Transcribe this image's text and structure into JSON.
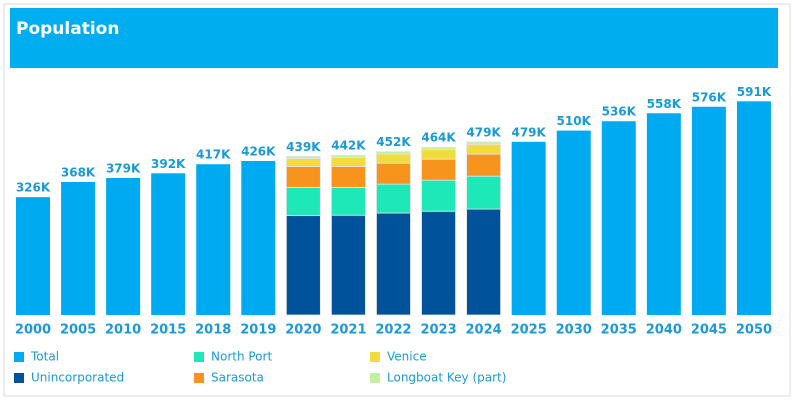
{
  "chart_data": {
    "type": "stacked_bar",
    "title": "Population",
    "categories": [
      "2000",
      "2005",
      "2010",
      "2015",
      "2018",
      "2019",
      "2020",
      "2021",
      "2022",
      "2023",
      "2024",
      "2025",
      "2030",
      "2035",
      "2040",
      "2045",
      "2050"
    ],
    "ylim": [
      0,
      650000
    ],
    "series": [
      {
        "name": "Total",
        "color": "#00aaf0",
        "role": "total",
        "values": [
          326000,
          368000,
          379000,
          392000,
          417000,
          426000,
          439000,
          442000,
          452000,
          464000,
          479000,
          479000,
          510000,
          536000,
          558000,
          576000,
          591000
        ],
        "value_labels": [
          "326K",
          "368K",
          "379K",
          "392K",
          "417K",
          "426K",
          "439K",
          "442K",
          "452K",
          "464K",
          "479K",
          "479K",
          "510K",
          "536K",
          "558K",
          "576K",
          "591K"
        ]
      },
      {
        "name": "Unincorporated",
        "color": "#00539b",
        "values": [
          null,
          null,
          null,
          null,
          null,
          null,
          275000,
          276000,
          282000,
          287000,
          293000,
          null,
          null,
          null,
          null,
          null,
          null
        ]
      },
      {
        "name": "North Port",
        "color": "#1ee8b8",
        "values": [
          null,
          null,
          null,
          null,
          null,
          null,
          78000,
          77000,
          80000,
          86000,
          91000,
          null,
          null,
          null,
          null,
          null,
          null
        ]
      },
      {
        "name": "Sarasota",
        "color": "#f7941d",
        "values": [
          null,
          null,
          null,
          null,
          null,
          null,
          58000,
          58000,
          58000,
          58000,
          61000,
          null,
          null,
          null,
          null,
          null,
          null
        ]
      },
      {
        "name": "Venice",
        "color": "#f0dc3c",
        "values": [
          null,
          null,
          null,
          null,
          null,
          null,
          22000,
          25000,
          25000,
          27000,
          27000,
          null,
          null,
          null,
          null,
          null,
          null
        ]
      },
      {
        "name": "Longboat Key (part)",
        "color": "#c2f0a0",
        "values": [
          null,
          null,
          null,
          null,
          null,
          null,
          6000,
          6000,
          7000,
          6000,
          7000,
          null,
          null,
          null,
          null,
          null,
          null
        ]
      }
    ]
  }
}
